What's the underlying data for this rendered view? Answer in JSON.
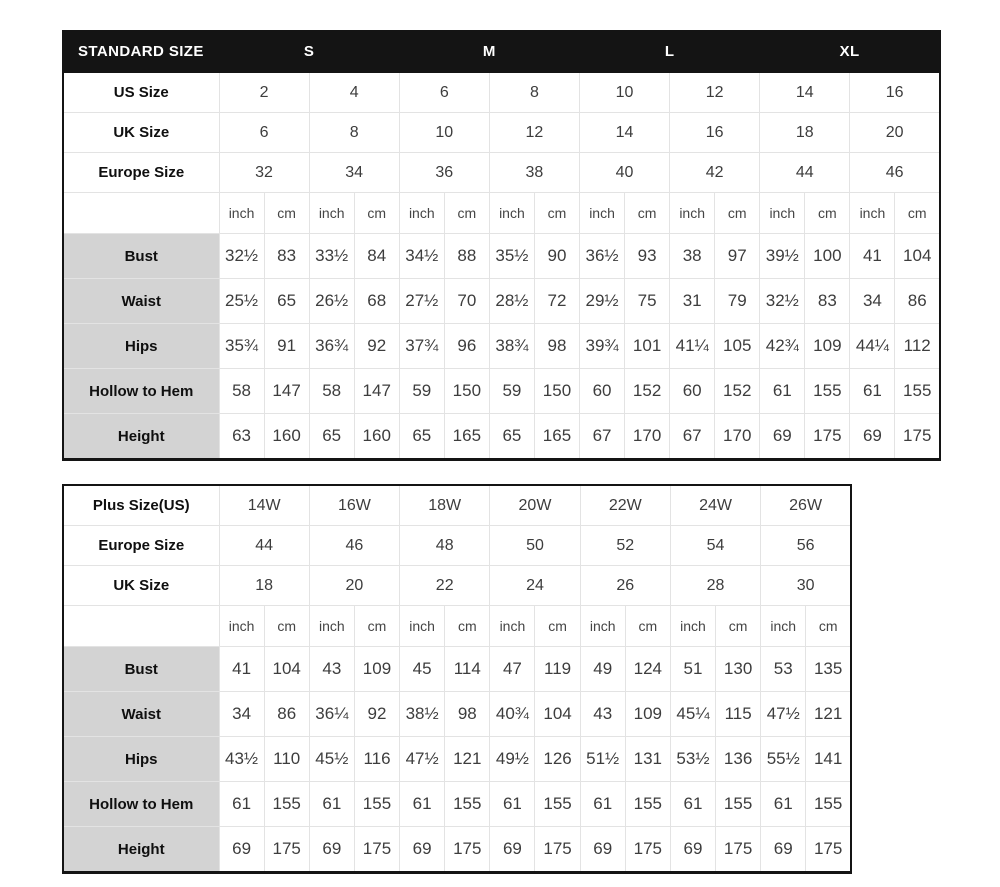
{
  "chart_data": [
    {
      "type": "table",
      "name": "standard_size_chart",
      "header": {
        "title": "STANDARD SIZE",
        "groups": [
          "S",
          "M",
          "L",
          "XL"
        ]
      },
      "size_rows": [
        {
          "label": "US Size",
          "values": [
            "2",
            "4",
            "6",
            "8",
            "10",
            "12",
            "14",
            "16"
          ]
        },
        {
          "label": "UK Size",
          "values": [
            "6",
            "8",
            "10",
            "12",
            "14",
            "16",
            "18",
            "20"
          ]
        },
        {
          "label": "Europe Size",
          "values": [
            "32",
            "34",
            "36",
            "38",
            "40",
            "42",
            "44",
            "46"
          ]
        }
      ],
      "unit_labels": {
        "inch": "inch",
        "cm": "cm"
      },
      "measure_rows": [
        {
          "label": "Bust",
          "values": [
            "32½",
            "83",
            "33½",
            "84",
            "34½",
            "88",
            "35½",
            "90",
            "36½",
            "93",
            "38",
            "97",
            "39½",
            "100",
            "41",
            "104"
          ]
        },
        {
          "label": "Waist",
          "values": [
            "25½",
            "65",
            "26½",
            "68",
            "27½",
            "70",
            "28½",
            "72",
            "29½",
            "75",
            "31",
            "79",
            "32½",
            "83",
            "34",
            "86"
          ]
        },
        {
          "label": "Hips",
          "values": [
            "35¾",
            "91",
            "36¾",
            "92",
            "37¾",
            "96",
            "38¾",
            "98",
            "39¾",
            "101",
            "41¼",
            "105",
            "42¾",
            "109",
            "44¼",
            "112"
          ]
        },
        {
          "label": "Hollow to Hem",
          "values": [
            "58",
            "147",
            "58",
            "147",
            "59",
            "150",
            "59",
            "150",
            "60",
            "152",
            "60",
            "152",
            "61",
            "155",
            "61",
            "155"
          ]
        },
        {
          "label": "Height",
          "values": [
            "63",
            "160",
            "65",
            "160",
            "65",
            "165",
            "65",
            "165",
            "67",
            "170",
            "67",
            "170",
            "69",
            "175",
            "69",
            "175"
          ]
        }
      ]
    },
    {
      "type": "table",
      "name": "plus_size_chart",
      "size_rows": [
        {
          "label": "Plus Size(US)",
          "values": [
            "14W",
            "16W",
            "18W",
            "20W",
            "22W",
            "24W",
            "26W"
          ]
        },
        {
          "label": "Europe Size",
          "values": [
            "44",
            "46",
            "48",
            "50",
            "52",
            "54",
            "56"
          ]
        },
        {
          "label": "UK Size",
          "values": [
            "18",
            "20",
            "22",
            "24",
            "26",
            "28",
            "30"
          ]
        }
      ],
      "unit_labels": {
        "inch": "inch",
        "cm": "cm"
      },
      "measure_rows": [
        {
          "label": "Bust",
          "values": [
            "41",
            "104",
            "43",
            "109",
            "45",
            "114",
            "47",
            "119",
            "49",
            "124",
            "51",
            "130",
            "53",
            "135"
          ]
        },
        {
          "label": "Waist",
          "values": [
            "34",
            "86",
            "36¼",
            "92",
            "38½",
            "98",
            "40¾",
            "104",
            "43",
            "109",
            "45¼",
            "115",
            "47½",
            "121"
          ]
        },
        {
          "label": "Hips",
          "values": [
            "43½",
            "110",
            "45½",
            "116",
            "47½",
            "121",
            "49½",
            "126",
            "51½",
            "131",
            "53½",
            "136",
            "55½",
            "141"
          ]
        },
        {
          "label": "Hollow to Hem",
          "values": [
            "61",
            "155",
            "61",
            "155",
            "61",
            "155",
            "61",
            "155",
            "61",
            "155",
            "61",
            "155",
            "61",
            "155"
          ]
        },
        {
          "label": "Height",
          "values": [
            "69",
            "175",
            "69",
            "175",
            "69",
            "175",
            "69",
            "175",
            "69",
            "175",
            "69",
            "175",
            "69",
            "175"
          ]
        }
      ]
    }
  ],
  "colors": {
    "header_bg": "#141414",
    "header_text": "#ffffff",
    "label_cell_bg": "#d3d3d3",
    "grid_line": "#e3e3e3",
    "value_text": "#3d3d3d",
    "label_text": "#0f0f0f",
    "page_bg": "#ffffff"
  }
}
